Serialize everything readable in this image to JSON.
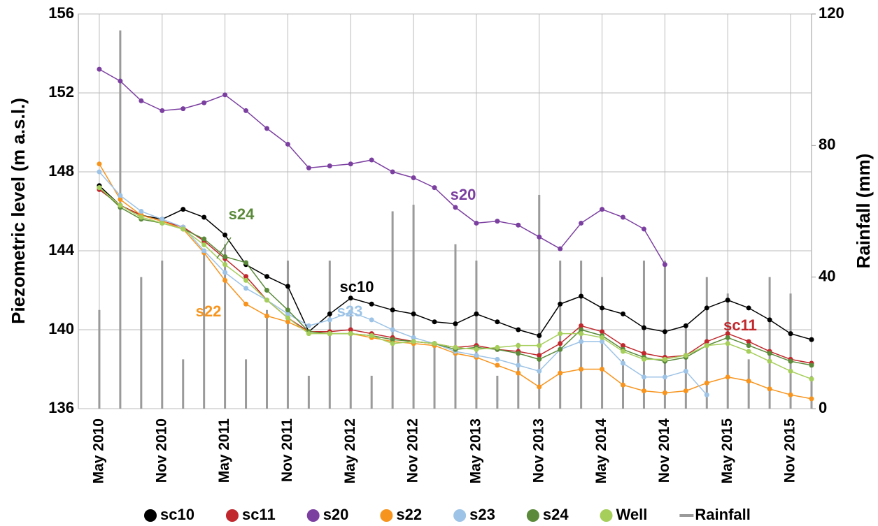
{
  "chart_data": {
    "type": "line",
    "y_label": "Piezometric level (m a.s.l.)",
    "y2_label": "Rainfall (mm)",
    "x": [
      "2010-05",
      "2010-07",
      "2010-09",
      "2010-11",
      "2011-01",
      "2011-03",
      "2011-05",
      "2011-07",
      "2011-09",
      "2011-11",
      "2012-01",
      "2012-03",
      "2012-05",
      "2012-07",
      "2012-09",
      "2012-11",
      "2013-01",
      "2013-03",
      "2013-05",
      "2013-07",
      "2013-09",
      "2013-11",
      "2014-01",
      "2014-03",
      "2014-05",
      "2014-07",
      "2014-09",
      "2014-11",
      "2015-01",
      "2015-03",
      "2015-05",
      "2015-07",
      "2015-09",
      "2015-11",
      "2016-01"
    ],
    "xlim": [
      "2010-03",
      "2016-01"
    ],
    "xticks": [
      {
        "value": "2010-05",
        "label": "May 2010"
      },
      {
        "value": "2010-11",
        "label": "Nov 2010"
      },
      {
        "value": "2011-05",
        "label": "May 2011"
      },
      {
        "value": "2011-11",
        "label": "Nov 2011"
      },
      {
        "value": "2012-05",
        "label": "May 2012"
      },
      {
        "value": "2012-11",
        "label": "Nov 2012"
      },
      {
        "value": "2013-05",
        "label": "May 2013"
      },
      {
        "value": "2013-11",
        "label": "Nov 2013"
      },
      {
        "value": "2014-05",
        "label": "May 2014"
      },
      {
        "value": "2014-11",
        "label": "Nov 2014"
      },
      {
        "value": "2015-05",
        "label": "May 2015"
      },
      {
        "value": "2015-11",
        "label": "Nov 2015"
      }
    ],
    "ylim": [
      136,
      156
    ],
    "yticks": [
      136,
      140,
      144,
      148,
      152,
      156
    ],
    "y2lim": [
      0,
      120
    ],
    "y2ticks": [
      0,
      40,
      80,
      120
    ],
    "grid": true,
    "series": [
      {
        "name": "sc10",
        "color": "#000000",
        "values": [
          147.3,
          146.3,
          145.8,
          145.6,
          146.1,
          145.7,
          144.8,
          143.3,
          142.7,
          142.2,
          139.9,
          140.8,
          141.6,
          141.3,
          141.0,
          140.8,
          140.4,
          140.3,
          140.8,
          140.4,
          140.0,
          139.7,
          141.3,
          141.7,
          141.1,
          140.8,
          140.1,
          139.9,
          140.2,
          141.1,
          141.5,
          141.1,
          140.5,
          139.8,
          139.5
        ]
      },
      {
        "name": "sc11",
        "color": "#c0282d",
        "values": [
          147.1,
          146.3,
          145.8,
          145.5,
          145.2,
          144.5,
          143.6,
          142.7,
          141.5,
          140.6,
          139.9,
          139.9,
          140.0,
          139.8,
          139.6,
          139.4,
          139.3,
          139.1,
          139.2,
          139.0,
          138.9,
          138.7,
          139.3,
          140.2,
          139.9,
          139.2,
          138.8,
          138.6,
          138.7,
          139.4,
          139.8,
          139.4,
          138.9,
          138.5,
          138.3
        ]
      },
      {
        "name": "s20",
        "color": "#7b3fa0",
        "values": [
          153.2,
          152.6,
          151.6,
          151.1,
          151.2,
          151.5,
          151.9,
          151.1,
          150.2,
          149.4,
          148.2,
          148.3,
          148.4,
          148.6,
          148.0,
          147.7,
          147.2,
          146.2,
          145.4,
          145.5,
          145.3,
          144.7,
          144.1,
          145.4,
          146.1,
          145.7,
          145.1,
          143.3,
          null,
          null,
          null,
          null,
          null,
          null,
          null
        ]
      },
      {
        "name": "s22",
        "color": "#f7941d",
        "values": [
          148.4,
          146.6,
          145.8,
          145.5,
          145.1,
          143.9,
          142.5,
          141.3,
          140.7,
          140.4,
          139.9,
          139.8,
          139.8,
          139.6,
          139.4,
          139.3,
          139.2,
          138.8,
          138.6,
          138.2,
          137.8,
          137.1,
          137.8,
          138.0,
          138.0,
          137.2,
          136.9,
          136.8,
          136.9,
          137.3,
          137.6,
          137.4,
          137.0,
          136.7,
          136.5
        ]
      },
      {
        "name": "s23",
        "color": "#9dc3e6",
        "values": [
          148.0,
          146.8,
          146.0,
          145.6,
          145.2,
          144.0,
          142.9,
          142.1,
          141.5,
          140.8,
          140.2,
          140.5,
          140.9,
          140.5,
          140.0,
          139.6,
          139.3,
          138.9,
          138.7,
          138.5,
          138.2,
          137.9,
          139.0,
          139.4,
          139.4,
          138.3,
          137.6,
          137.6,
          137.9,
          136.7,
          null,
          null,
          null,
          null,
          null
        ]
      },
      {
        "name": "s24",
        "color": "#5a8a3a",
        "values": [
          147.2,
          146.2,
          145.6,
          145.4,
          145.1,
          144.6,
          143.7,
          143.4,
          142.0,
          141.0,
          139.9,
          139.8,
          139.8,
          139.7,
          139.5,
          139.4,
          139.3,
          139.0,
          139.1,
          139.0,
          138.8,
          138.5,
          139.0,
          140.0,
          139.7,
          139.0,
          138.6,
          138.4,
          138.6,
          139.2,
          139.6,
          139.2,
          138.8,
          138.4,
          138.2
        ]
      },
      {
        "name": "Well",
        "color": "#a6ce5b",
        "values": [
          147.2,
          146.3,
          145.7,
          145.4,
          145.1,
          144.3,
          143.3,
          142.5,
          141.5,
          140.6,
          139.8,
          139.8,
          139.8,
          139.7,
          139.3,
          139.4,
          139.3,
          139.1,
          139.0,
          139.1,
          139.2,
          139.2,
          139.8,
          139.8,
          139.6,
          138.9,
          138.5,
          138.5,
          138.7,
          139.2,
          139.3,
          138.9,
          138.4,
          137.9,
          137.5
        ]
      },
      {
        "name": "Rainfall",
        "color": "#9a9a9a",
        "axis": "y2",
        "type": "bar",
        "values": [
          30,
          115,
          40,
          45,
          15,
          48,
          50,
          15,
          30,
          45,
          10,
          45,
          30,
          10,
          60,
          62,
          20,
          50,
          45,
          10,
          20,
          65,
          45,
          45,
          40,
          15,
          45,
          45,
          25,
          40,
          35,
          15,
          40,
          35,
          10
        ]
      }
    ],
    "annotations": [
      "s20",
      "s24",
      "sc10",
      "s23",
      "s22",
      "sc11"
    ]
  }
}
